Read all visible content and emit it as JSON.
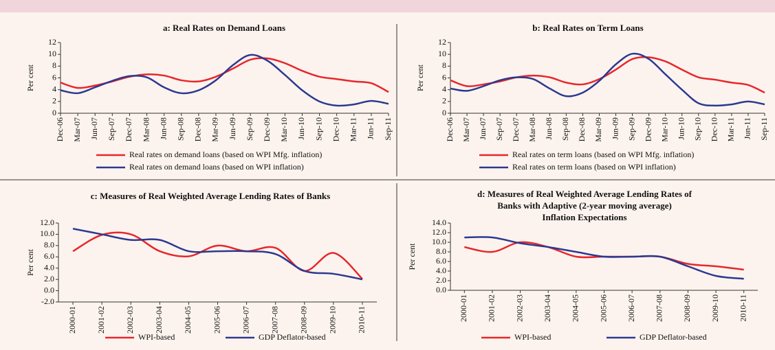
{
  "chart_data": [
    {
      "type": "line",
      "title": "a: Real Rates on Demand Loans",
      "ylabel": "Per cent",
      "categories": [
        "Dec-06",
        "Mar-07",
        "Jun-07",
        "Sep-07",
        "Dec-07",
        "Mar-08",
        "Jun-08",
        "Sep-08",
        "Dec-08",
        "Mar-09",
        "Jun-09",
        "Sep-09",
        "Dec-09",
        "Mar-10",
        "Jun-10",
        "Sep-10",
        "Dec-10",
        "Mar-11",
        "Jun-11",
        "Sep-11"
      ],
      "series": [
        {
          "name": "Real rates on demand loans (based on WPI Mfg. inflation)",
          "color": "#e8262b",
          "values": [
            5.2,
            4.3,
            4.7,
            5.4,
            6.2,
            6.6,
            6.4,
            5.6,
            5.4,
            6.2,
            7.6,
            9.1,
            9.3,
            8.5,
            7.2,
            6.2,
            5.8,
            5.4,
            5.1,
            3.6
          ]
        },
        {
          "name": "Real rates on demand loans (based on WPI inflation)",
          "color": "#2b3990",
          "values": [
            3.9,
            3.4,
            4.4,
            5.5,
            6.3,
            6.1,
            4.4,
            3.4,
            3.9,
            5.6,
            8.2,
            9.9,
            8.9,
            6.5,
            3.9,
            2.0,
            1.3,
            1.5,
            2.1,
            1.6
          ]
        }
      ],
      "ylim": [
        0,
        12
      ],
      "yticks": [
        0,
        2,
        4,
        6,
        8,
        10,
        12
      ]
    },
    {
      "type": "line",
      "title": "b: Real Rates on Term Loans",
      "ylabel": "Per cent",
      "categories": [
        "Dec-06",
        "Mar-07",
        "Jun-07",
        "Sep-07",
        "Dec-07",
        "Mar-08",
        "Jun-08",
        "Sep-08",
        "Dec-08",
        "Mar-09",
        "Jun-09",
        "Sep-09",
        "Dec-09",
        "Mar-10",
        "Jun-10",
        "Sep-10",
        "Dec-10",
        "Mar-11",
        "Jun-11",
        "Sep-11"
      ],
      "series": [
        {
          "name": "Real rates on term loans (based on WPI Mfg. inflation)",
          "color": "#e8262b",
          "values": [
            5.6,
            4.6,
            4.9,
            5.4,
            6.1,
            6.4,
            6.1,
            5.2,
            4.9,
            5.8,
            7.4,
            9.2,
            9.5,
            8.8,
            7.4,
            6.1,
            5.7,
            5.2,
            4.8,
            3.5
          ]
        },
        {
          "name": "Real rates on term loans (based on WPI inflation)",
          "color": "#2b3990",
          "values": [
            4.2,
            3.8,
            4.6,
            5.6,
            6.1,
            5.8,
            4.2,
            2.9,
            3.5,
            5.5,
            8.3,
            10.1,
            9.2,
            6.6,
            4.0,
            1.7,
            1.3,
            1.5,
            2.0,
            1.5
          ]
        }
      ],
      "ylim": [
        0,
        12
      ],
      "yticks": [
        0,
        2,
        4,
        6,
        8,
        10,
        12
      ]
    },
    {
      "type": "line",
      "title": "c: Measures of Real Weighted Average Lending Rates of Banks",
      "ylabel": "Per cent",
      "categories": [
        "2000-01",
        "2001-02",
        "2002-03",
        "2003-04",
        "2004-05",
        "2005-06",
        "2006-07",
        "2007-08",
        "2008-09",
        "2009-10",
        "2010-11"
      ],
      "series": [
        {
          "name": "WPI-based",
          "color": "#e8262b",
          "values": [
            7.0,
            9.9,
            10.0,
            7.0,
            6.1,
            8.0,
            7.0,
            7.6,
            3.5,
            6.7,
            2.1
          ]
        },
        {
          "name": "GDP Deflator-based",
          "color": "#2b3990",
          "values": [
            11.0,
            10.0,
            9.0,
            9.0,
            7.0,
            7.0,
            7.0,
            6.5,
            3.5,
            3.0,
            2.0
          ]
        }
      ],
      "ylim": [
        -2,
        12
      ],
      "yticks": [
        {
          "value": -2,
          "label": "-2.0"
        },
        {
          "value": 0,
          "label": "0.0"
        },
        {
          "value": 2,
          "label": "2.0"
        },
        {
          "value": 4,
          "label": "4.0"
        },
        {
          "value": 6,
          "label": "6.0"
        },
        {
          "value": 8,
          "label": "8.0"
        },
        {
          "value": 10,
          "label": "10.0"
        },
        {
          "value": 12,
          "label": "12.0"
        }
      ]
    },
    {
      "type": "line",
      "title": [
        "d: Measures of Real  Weighted Average Lending Rates of",
        "Banks with Adaptive (2-year moving average)",
        "Inflation Expectations"
      ],
      "ylabel": "Per cent",
      "categories": [
        "2000-01",
        "2001-02",
        "2002-03",
        "2003-04",
        "2004-05",
        "2005-06",
        "2006-07",
        "2007-08",
        "2008-09",
        "2009-10",
        "2010-11"
      ],
      "series": [
        {
          "name": "WPI-based",
          "color": "#e8262b",
          "values": [
            9.0,
            8.0,
            10.0,
            9.0,
            7.0,
            7.0,
            7.0,
            7.0,
            5.5,
            5.0,
            4.3
          ]
        },
        {
          "name": "GDP Deflator-based",
          "color": "#2b3990",
          "values": [
            11.0,
            11.0,
            9.8,
            9.0,
            8.0,
            7.0,
            7.0,
            7.0,
            5.0,
            3.0,
            2.4
          ]
        }
      ],
      "ylim": [
        0,
        14
      ],
      "yticks": [
        {
          "value": 0,
          "label": "0.0"
        },
        {
          "value": 2,
          "label": "2.0"
        },
        {
          "value": 4,
          "label": "4.0"
        },
        {
          "value": 6,
          "label": "6.0"
        },
        {
          "value": 8,
          "label": "8.0"
        },
        {
          "value": 10,
          "label": "10.0"
        },
        {
          "value": 12,
          "label": "12.0"
        },
        {
          "value": 14,
          "label": "14.0"
        }
      ]
    }
  ]
}
